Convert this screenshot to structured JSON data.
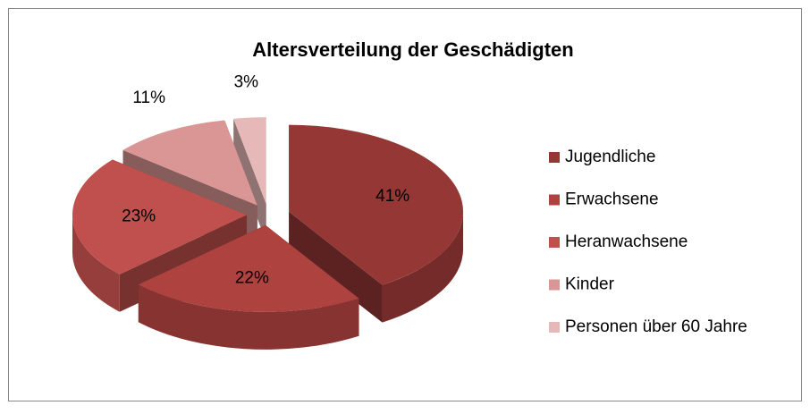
{
  "chart_data": {
    "type": "pie",
    "title": "Altersverteilung der Geschädigten",
    "categories": [
      "Jugendliche",
      "Erwachsene",
      "Heranwachsene",
      "Kinder",
      "Personen über 60 Jahre"
    ],
    "values": [
      41,
      22,
      23,
      11,
      3
    ],
    "value_labels": [
      "41%",
      "22%",
      "23%",
      "11%",
      "3%"
    ],
    "colors": [
      "#953735",
      "#ad423f",
      "#c0504d",
      "#d99694",
      "#e6b9b8"
    ],
    "legend": "right"
  }
}
